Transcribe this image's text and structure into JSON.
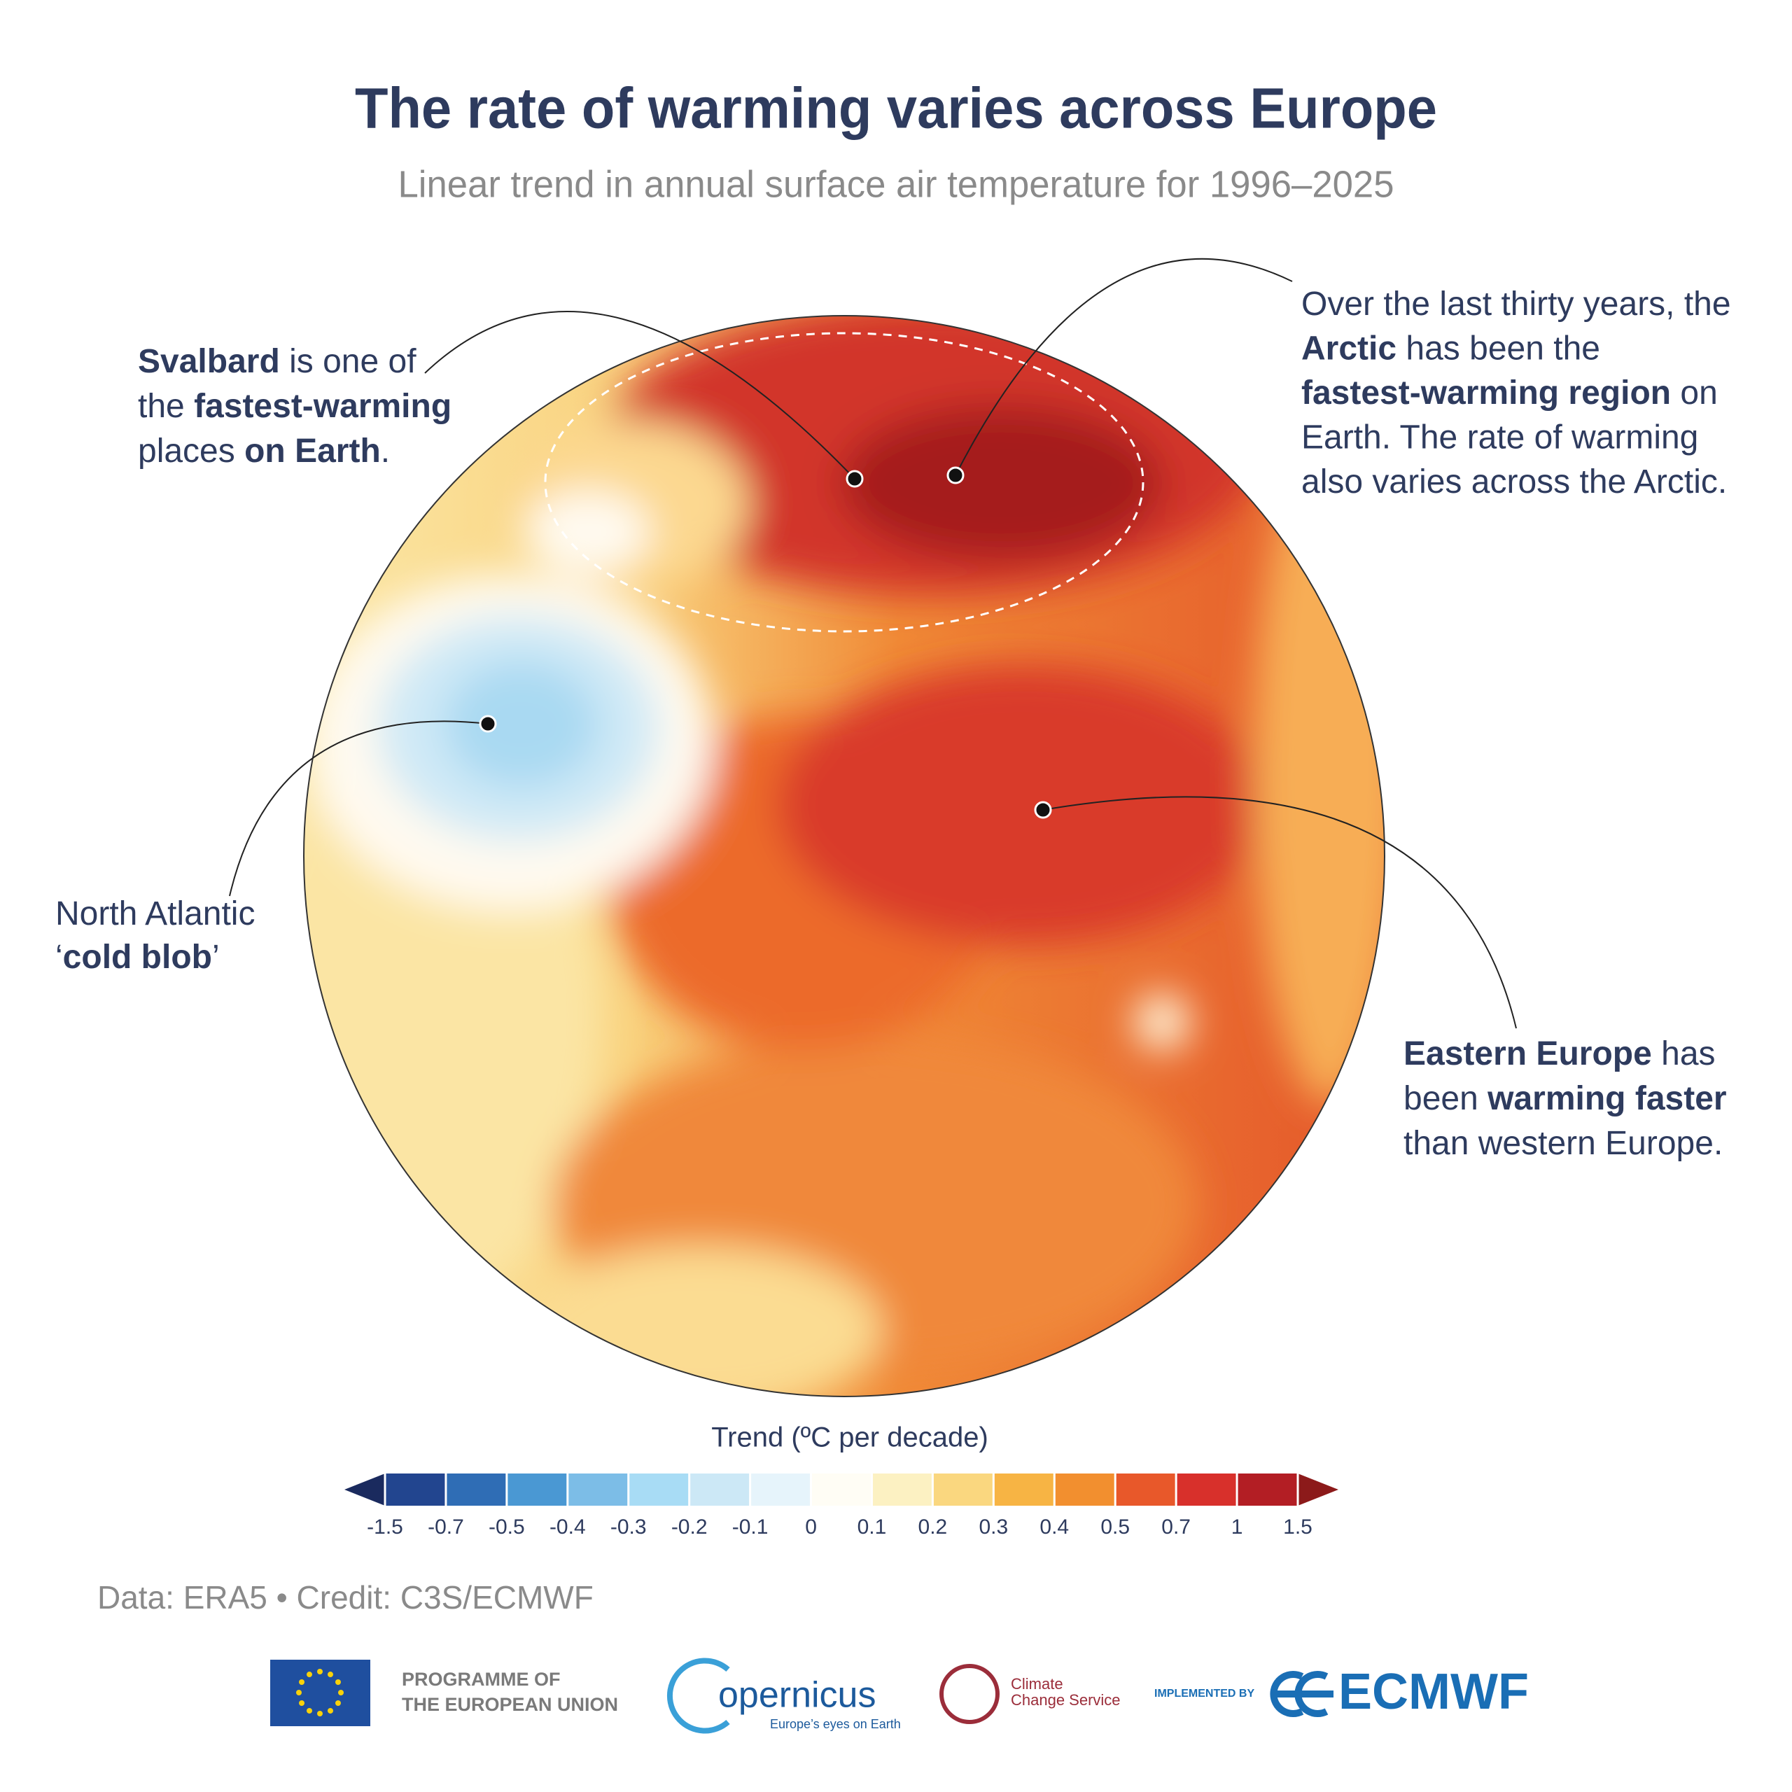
{
  "title": "The rate of warming varies across Europe",
  "subtitle": "Linear trend in annual surface air temperature for 1996–2025",
  "annotations": [
    {
      "lines": [
        [
          {
            "text": "Svalbard",
            "bold": true
          },
          {
            "text": " is one of",
            "bold": false
          }
        ],
        [
          {
            "text": "the ",
            "bold": false
          },
          {
            "text": "fastest-warming",
            "bold": true
          }
        ],
        [
          {
            "text": "places ",
            "bold": false
          },
          {
            "text": "on Earth",
            "bold": true
          },
          {
            "text": ".",
            "bold": false
          }
        ]
      ]
    },
    {
      "lines": [
        [
          {
            "text": "Over the last thirty years, the",
            "bold": false
          }
        ],
        [
          {
            "text": "Arctic",
            "bold": true
          },
          {
            "text": " has been the",
            "bold": false
          }
        ],
        [
          {
            "text": "fastest-warming region",
            "bold": true
          },
          {
            "text": " on",
            "bold": false
          }
        ],
        [
          {
            "text": "Earth. The rate of warming",
            "bold": false
          }
        ],
        [
          {
            "text": "also varies across the Arctic.",
            "bold": false
          }
        ]
      ]
    },
    {
      "lines": [
        [
          {
            "text": "North Atlantic",
            "bold": false
          }
        ],
        [
          {
            "text": "‘",
            "bold": false
          },
          {
            "text": "cold blob",
            "bold": true
          },
          {
            "text": "’",
            "bold": false
          }
        ]
      ]
    },
    {
      "lines": [
        [
          {
            "text": "Eastern Europe",
            "bold": true
          },
          {
            "text": " has",
            "bold": false
          }
        ],
        [
          {
            "text": "been ",
            "bold": false
          },
          {
            "text": "warming faster",
            "bold": true
          }
        ],
        [
          {
            "text": "than western Europe.",
            "bold": false
          }
        ]
      ]
    }
  ],
  "colorbar": {
    "label": "Trend (ºC per decade)",
    "ticks": [
      -1.5,
      -0.7,
      -0.5,
      -0.4,
      -0.3,
      -0.2,
      -0.1,
      0,
      0.1,
      0.2,
      0.3,
      0.4,
      0.5,
      0.7,
      1,
      1.5
    ],
    "colors": [
      "#22458f",
      "#2f6db5",
      "#4a98d3",
      "#7cbde7",
      "#a8dcf5",
      "#cce8f6",
      "#e6f4fb",
      "#fffdf5",
      "#fcf1c2",
      "#fad77f",
      "#f7b444",
      "#f28f2f",
      "#e8582a",
      "#d8302b",
      "#b31e24"
    ],
    "under_color": "#1a2a5e",
    "over_color": "#8c1a1a"
  },
  "credit": "Data: ERA5 • Credit: C3S/ECMWF",
  "logos": {
    "eu": [
      "PROGRAMME OF",
      "THE EUROPEAN UNION"
    ],
    "copernicus": {
      "name": "opernicus",
      "tagline": "Europe’s eyes on Earth"
    },
    "climate": [
      "Climate",
      "Change Service"
    ],
    "implemented_by": "IMPLEMENTED BY",
    "ecmwf": "ECMWF"
  }
}
